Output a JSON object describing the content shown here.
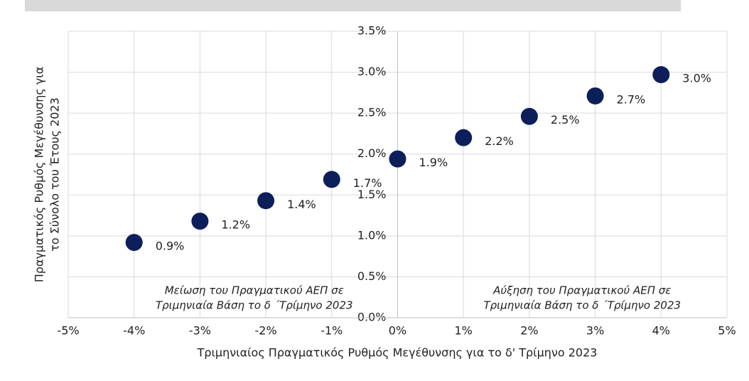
{
  "chart_data": {
    "type": "scatter",
    "xlabel": "Τριμηνιαίος Πραγματικός Ρυθμός Μεγέθυνσης για το δ' Τρίμηνο 2023",
    "ylabel": [
      "Πραγματικός Ρυθμός Μεγέθυνσης για",
      "το Σύνολο του Έτους 2023"
    ],
    "annotations": [
      [
        "Μείωση του Πραγματικού ΑΕΠ σε",
        "Τριμηνιαία Βάση το δ ΄Τρίμηνο 2023"
      ],
      [
        "Αύξηση του Πραγματικού ΑΕΠ σε",
        "Τριμηνιαία Βάση το δ ΄Τρίμηνο 2023"
      ]
    ],
    "x": [
      -4,
      -3,
      -2,
      -1,
      0,
      1,
      2,
      3,
      4
    ],
    "values": [
      0.92,
      1.18,
      1.43,
      1.69,
      1.94,
      2.2,
      2.46,
      2.71,
      2.97
    ],
    "value_labels": [
      "0.9%",
      "1.2%",
      "1.4%",
      "1.7%",
      "1.9%",
      "2.2%",
      "2.5%",
      "2.7%",
      "3.0%"
    ],
    "color": "#0c1f5b",
    "xlim": [
      -5,
      5
    ],
    "xticks": [
      {
        "value": -5,
        "label": "-5%"
      },
      {
        "value": -4,
        "label": "-4%"
      },
      {
        "value": -3,
        "label": "-3%"
      },
      {
        "value": -2,
        "label": "-2%"
      },
      {
        "value": -1,
        "label": "-1%"
      },
      {
        "value": 0,
        "label": "0%"
      },
      {
        "value": 1,
        "label": "1%"
      },
      {
        "value": 2,
        "label": "2%"
      },
      {
        "value": 3,
        "label": "3%"
      },
      {
        "value": 4,
        "label": "4%"
      },
      {
        "value": 5,
        "label": "5%"
      }
    ],
    "ylim": [
      0,
      3.5
    ],
    "yticks": [
      {
        "value": 0,
        "label": "0.0%"
      },
      {
        "value": 0.5,
        "label": "0.5%"
      },
      {
        "value": 1,
        "label": "1.0%"
      },
      {
        "value": 1.5,
        "label": "1.5%"
      },
      {
        "value": 2,
        "label": "2.0%"
      },
      {
        "value": 2.5,
        "label": "2.5%"
      },
      {
        "value": 3,
        "label": "3.0%"
      },
      {
        "value": 3.5,
        "label": "3.5%"
      }
    ],
    "grid": true
  }
}
